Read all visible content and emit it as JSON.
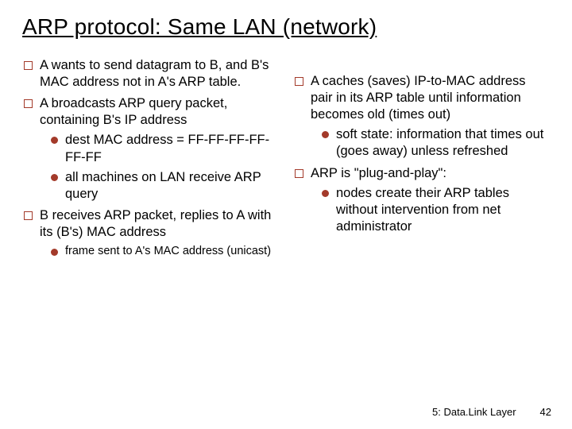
{
  "title": "ARP protocol: Same LAN (network)",
  "left": {
    "items": [
      {
        "text": "A wants to send datagram to B, and B's MAC address not in A's ARP table."
      },
      {
        "text": "A broadcasts ARP query packet, containing B's IP address",
        "sub": [
          "dest MAC address = FF-FF-FF-FF-FF-FF",
          "all machines on LAN receive ARP query"
        ]
      },
      {
        "text": "B receives ARP packet, replies to A with its (B's) MAC address",
        "subSmall": [
          "frame sent to A's MAC address (unicast)"
        ]
      }
    ]
  },
  "right": {
    "items": [
      {
        "text": "A caches (saves) IP-to-MAC address pair in its ARP table until information becomes old (times out)",
        "sub": [
          "soft state: information that times out (goes away) unless refreshed"
        ]
      },
      {
        "text": "ARP is \"plug-and-play\":",
        "big": true,
        "sub": [
          "nodes create their ARP tables without intervention from net administrator"
        ]
      }
    ]
  },
  "footer": {
    "section": "5: Data.Link Layer",
    "page": "42"
  },
  "colors": {
    "bullet": "#a33a2a",
    "background": "#ffffff",
    "text": "#000000"
  }
}
